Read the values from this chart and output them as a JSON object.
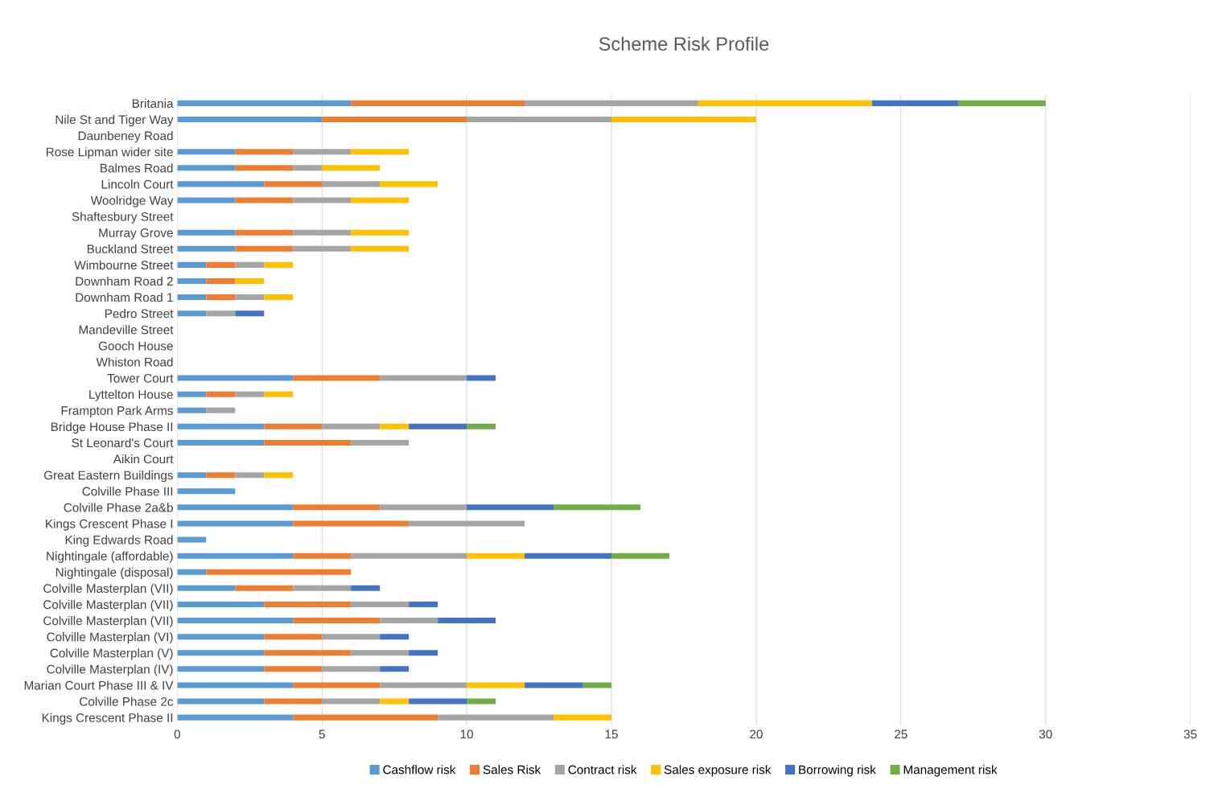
{
  "chart_data": {
    "type": "bar",
    "orientation": "horizontal",
    "stacked": true,
    "title": "Scheme Risk Profile",
    "categories": [
      "Britania",
      "Nile St and Tiger Way",
      "Daunbeney Road",
      "Rose Lipman wider site",
      "Balmes Road",
      "Lincoln Court",
      "Woolridge Way",
      "Shaftesbury Street",
      "Murray Grove",
      "Buckland Street",
      "Wimbourne Street",
      "Downham Road 2",
      "Downham Road 1",
      "Pedro Street",
      "Mandeville Street",
      "Gooch House",
      "Whiston Road",
      "Tower Court",
      "Lyttelton House",
      "Frampton Park Arms",
      "Bridge House Phase II",
      "St Leonard's Court",
      "Aikin Court",
      "Great Eastern Buildings",
      "Colville Phase III",
      "Colville Phase 2a&b",
      "Kings Crescent Phase I",
      "King Edwards Road",
      "Nightingale (affordable)",
      "Nightingale (disposal)",
      "Colville Masterplan (VII)",
      "Colville Masterplan (VII)",
      "Colville Masterplan (VII)",
      "Colville Masterplan (VI)",
      "Colville Masterplan (V)",
      "Colville Masterplan (IV)",
      "Marian Court Phase III & IV",
      "Colville Phase 2c",
      "Kings Crescent Phase II"
    ],
    "series": [
      {
        "name": "Cashflow risk",
        "color": "#5b9bd5",
        "values": [
          6,
          5,
          0,
          2,
          2,
          3,
          2,
          0,
          2,
          2,
          1,
          1,
          1,
          1,
          0,
          0,
          0,
          4,
          1,
          1,
          3,
          3,
          0,
          1,
          2,
          4,
          4,
          1,
          4,
          1,
          2,
          3,
          4,
          3,
          3,
          3,
          4,
          3,
          4
        ]
      },
      {
        "name": "Sales Risk",
        "color": "#ed7d31",
        "values": [
          6,
          5,
          0,
          2,
          2,
          2,
          2,
          0,
          2,
          2,
          1,
          1,
          1,
          0,
          0,
          0,
          0,
          3,
          1,
          0,
          2,
          3,
          0,
          1,
          0,
          3,
          4,
          0,
          2,
          5,
          2,
          3,
          3,
          2,
          3,
          2,
          3,
          2,
          5
        ]
      },
      {
        "name": "Contract risk",
        "color": "#a5a5a5",
        "values": [
          6,
          5,
          0,
          2,
          1,
          2,
          2,
          0,
          2,
          2,
          1,
          0,
          1,
          1,
          0,
          0,
          0,
          3,
          1,
          1,
          2,
          2,
          0,
          1,
          0,
          3,
          4,
          0,
          4,
          0,
          2,
          2,
          2,
          2,
          2,
          2,
          3,
          2,
          4
        ]
      },
      {
        "name": "Sales exposure risk",
        "color": "#ffc000",
        "values": [
          6,
          5,
          0,
          2,
          2,
          2,
          2,
          0,
          2,
          2,
          1,
          1,
          1,
          0,
          0,
          0,
          0,
          0,
          1,
          0,
          1,
          0,
          0,
          1,
          0,
          0,
          0,
          0,
          2,
          0,
          0,
          0,
          0,
          0,
          0,
          0,
          2,
          1,
          2
        ]
      },
      {
        "name": "Borrowing risk",
        "color": "#4472c4",
        "values": [
          3,
          0,
          0,
          0,
          0,
          0,
          0,
          0,
          0,
          0,
          0,
          0,
          0,
          1,
          0,
          0,
          0,
          1,
          0,
          0,
          2,
          0,
          0,
          0,
          0,
          3,
          0,
          0,
          3,
          0,
          1,
          1,
          2,
          1,
          1,
          1,
          2,
          2,
          0
        ]
      },
      {
        "name": "Management risk",
        "color": "#70ad47",
        "values": [
          3,
          0,
          0,
          0,
          0,
          0,
          0,
          0,
          0,
          0,
          0,
          0,
          0,
          0,
          0,
          0,
          0,
          0,
          0,
          0,
          1,
          0,
          0,
          0,
          0,
          3,
          0,
          0,
          2,
          0,
          0,
          0,
          0,
          0,
          0,
          0,
          1,
          1,
          0
        ]
      }
    ],
    "xlim": [
      0,
      35
    ],
    "xticks": [
      0,
      5,
      10,
      15,
      20,
      25,
      30,
      35
    ],
    "grid": "x",
    "legend": "bottom"
  }
}
